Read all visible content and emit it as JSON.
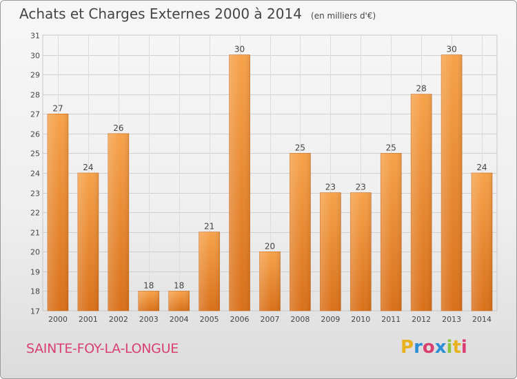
{
  "header": {
    "title": "Achats et Charges Externes 2000 à 2014",
    "unit_note": "(en milliers d'€)"
  },
  "footer": {
    "city": "SAINTE-FOY-LA-LONGUE",
    "logo_letters": [
      "P",
      "r",
      "o",
      "x",
      "i",
      "t",
      "i"
    ],
    "logo_colors": [
      "#e8b21e",
      "#2c8fd6",
      "#d94070",
      "#2c8fd6",
      "#8cc63f",
      "#e8b21e",
      "#d94070"
    ]
  },
  "chart_data": {
    "type": "bar",
    "categories": [
      "2000",
      "2001",
      "2002",
      "2003",
      "2004",
      "2005",
      "2006",
      "2007",
      "2008",
      "2009",
      "2010",
      "2011",
      "2012",
      "2013",
      "2014"
    ],
    "values": [
      27,
      24,
      26,
      18,
      18,
      21,
      30,
      20,
      25,
      23,
      23,
      25,
      28,
      30,
      24
    ],
    "ylim": [
      17,
      31
    ],
    "yticks": [
      17,
      18,
      19,
      20,
      21,
      22,
      23,
      24,
      25,
      26,
      27,
      28,
      29,
      30,
      31
    ],
    "grid": true,
    "bar_color_top": "#f6a24a",
    "bar_color_bottom": "#d9701a",
    "xlabel": "",
    "ylabel": ""
  }
}
